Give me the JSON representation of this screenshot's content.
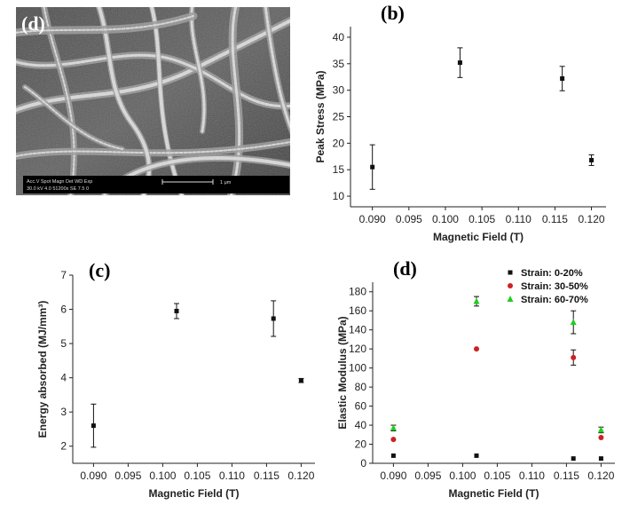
{
  "sem_image": {
    "panel_label": "(d)",
    "info_bar": {
      "headers": "Acc.V  Spot Magn    Det  WD  Exp",
      "values": "30.0 kV 4.0   51200x  SE   7.5   0",
      "scale_label": "1 μm"
    }
  },
  "chart_data": [
    {
      "id": "b",
      "type": "scatter",
      "panel_label": "(b)",
      "xlabel": "Magnetic Field (T)",
      "ylabel": "Peak Stress (MPa)",
      "xlim": [
        0.087,
        0.122
      ],
      "ylim": [
        8,
        42
      ],
      "xticks": [
        "0.090",
        "0.095",
        "0.100",
        "0.105",
        "0.110",
        "0.115",
        "0.120"
      ],
      "yticks": [
        "10",
        "15",
        "20",
        "25",
        "30",
        "35",
        "40"
      ],
      "series": [
        {
          "color": "#111111",
          "marker": "square",
          "x": [
            0.09,
            0.102,
            0.116,
            0.12
          ],
          "y": [
            15.5,
            35.2,
            32.2,
            16.8
          ],
          "err": [
            4.2,
            2.8,
            2.3,
            1.0
          ]
        }
      ]
    },
    {
      "id": "c",
      "type": "scatter",
      "panel_label": "(c)",
      "xlabel": "Magnetic Field (T)",
      "ylabel": "Energy absorbed (MJ/mm³)",
      "xlim": [
        0.087,
        0.122
      ],
      "ylim": [
        1.5,
        7.0
      ],
      "xticks": [
        "0.090",
        "0.095",
        "0.100",
        "0.105",
        "0.110",
        "0.115",
        "0.120"
      ],
      "yticks": [
        "2",
        "3",
        "4",
        "5",
        "6",
        "7"
      ],
      "series": [
        {
          "color": "#111111",
          "marker": "square",
          "x": [
            0.09,
            0.102,
            0.116,
            0.12
          ],
          "y": [
            2.6,
            5.95,
            5.73,
            3.92
          ],
          "err": [
            0.63,
            0.22,
            0.52,
            0.06
          ]
        }
      ]
    },
    {
      "id": "d",
      "type": "scatter",
      "panel_label": "(d)",
      "xlabel": "Magnetic Field (T)",
      "ylabel": "Elastic Modulus (MPa)",
      "xlim": [
        0.087,
        0.122
      ],
      "ylim": [
        0,
        190
      ],
      "xticks": [
        "0.090",
        "0.095",
        "0.100",
        "0.105",
        "0.110",
        "0.115",
        "0.120"
      ],
      "yticks": [
        "0",
        "20",
        "40",
        "60",
        "80",
        "100",
        "120",
        "140",
        "160",
        "180"
      ],
      "legend": "top-right",
      "series": [
        {
          "name": "Strain: 0-20%",
          "color": "#111111",
          "marker": "square",
          "x": [
            0.09,
            0.102,
            0.116,
            0.12
          ],
          "y": [
            8,
            8,
            5,
            5
          ],
          "err": [
            0,
            0,
            0,
            0
          ]
        },
        {
          "name": "Strain: 30-50%",
          "color": "#cc2222",
          "marker": "circle",
          "x": [
            0.09,
            0.102,
            0.116,
            0.12
          ],
          "y": [
            25,
            120,
            111,
            27
          ],
          "err": [
            0,
            0,
            8,
            0
          ]
        },
        {
          "name": "Strain: 60-70%",
          "color": "#22cc22",
          "marker": "triangle",
          "x": [
            0.09,
            0.102,
            0.116,
            0.12
          ],
          "y": [
            37,
            170,
            148,
            35
          ],
          "err": [
            3,
            5,
            12,
            3
          ]
        }
      ]
    }
  ]
}
